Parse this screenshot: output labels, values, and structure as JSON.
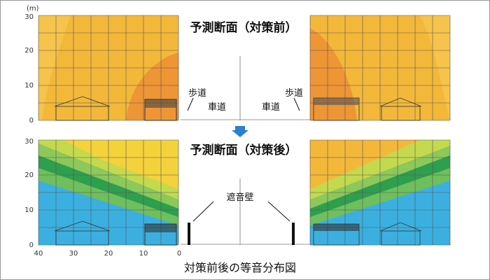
{
  "unit": "(m)",
  "top": {
    "title": "予測断面（対策前）",
    "y_ticks": [
      "0",
      "10",
      "20",
      "30"
    ],
    "labels": [
      "歩道",
      "車道",
      "車道",
      "歩道"
    ]
  },
  "bottom": {
    "title": "予測断面（対策後）",
    "y_ticks": [
      "0",
      "10",
      "20",
      "30"
    ],
    "x_ticks": [
      "40",
      "30",
      "20",
      "10",
      "0"
    ],
    "wall_label": "遮音壁"
  },
  "caption": "対策前後の等音分布図"
}
